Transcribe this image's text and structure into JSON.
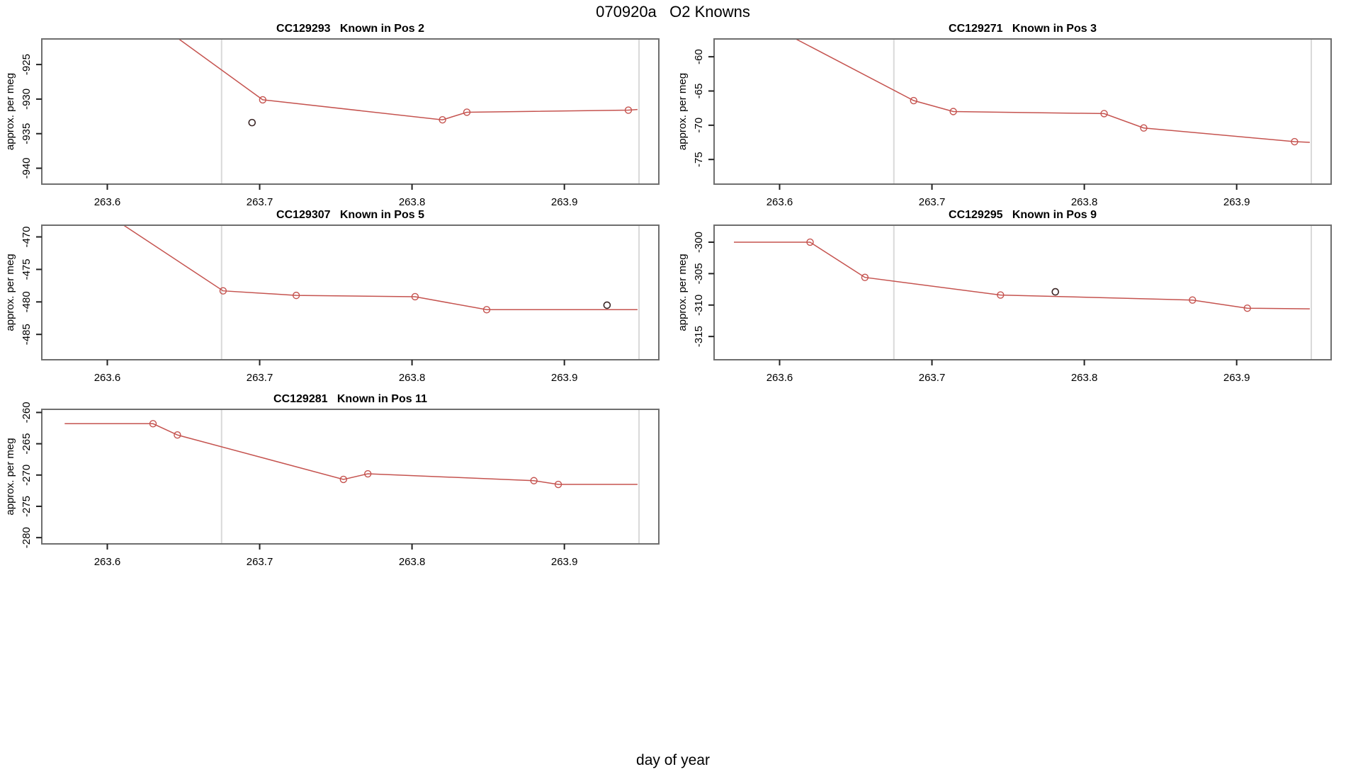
{
  "main_title": "070920a   O2 Knowns",
  "x_axis_label": "day of year",
  "colors": {
    "series": "#c5534f",
    "outlier": "#3a2626",
    "guide": "#d9d9d9",
    "frame": "#6e6e6e",
    "tick": "#222222",
    "text": "#000000"
  },
  "chart_data": [
    {
      "type": "line",
      "title": "CC129293   Known in Pos 2",
      "ylabel": "approx. per meg",
      "xlim": [
        263.557,
        263.962
      ],
      "ylim": [
        -942.3,
        -921.3
      ],
      "xticks": [
        263.6,
        263.7,
        263.8,
        263.9
      ],
      "yticks": [
        -925,
        -930,
        -935,
        -940
      ],
      "guides_x": [
        263.675,
        263.949
      ],
      "line": [
        [
          263.62,
          -917.0
        ],
        [
          263.702,
          -930.1
        ],
        [
          263.82,
          -933.0
        ],
        [
          263.836,
          -931.9
        ],
        [
          263.942,
          -931.6
        ],
        [
          263.948,
          -931.5
        ]
      ],
      "markers": [
        [
          263.702,
          -930.1
        ],
        [
          263.82,
          -933.0
        ],
        [
          263.836,
          -931.9
        ],
        [
          263.942,
          -931.6
        ]
      ],
      "outliers": [
        [
          263.695,
          -933.4
        ]
      ]
    },
    {
      "type": "line",
      "title": "CC129271   Known in Pos 3",
      "ylabel": "approx. per meg",
      "xlim": [
        263.557,
        263.962
      ],
      "ylim": [
        -78.6,
        -57.4
      ],
      "xticks": [
        263.6,
        263.7,
        263.8,
        263.9
      ],
      "yticks": [
        -60,
        -65,
        -70,
        -75
      ],
      "guides_x": [
        263.675,
        263.949
      ],
      "line": [
        [
          263.59,
          -55.0
        ],
        [
          263.688,
          -66.4
        ],
        [
          263.714,
          -68.0
        ],
        [
          263.813,
          -68.3
        ],
        [
          263.839,
          -70.4
        ],
        [
          263.938,
          -72.4
        ],
        [
          263.948,
          -72.5
        ]
      ],
      "markers": [
        [
          263.688,
          -66.4
        ],
        [
          263.714,
          -68.0
        ],
        [
          263.813,
          -68.3
        ],
        [
          263.839,
          -70.4
        ],
        [
          263.938,
          -72.4
        ]
      ],
      "outliers": []
    },
    {
      "type": "line",
      "title": "CC129307   Known in Pos 5",
      "ylabel": "approx. per meg",
      "xlim": [
        263.557,
        263.962
      ],
      "ylim": [
        -488.9,
        -468.2
      ],
      "xticks": [
        263.6,
        263.7,
        263.8,
        263.9
      ],
      "yticks": [
        -470,
        -475,
        -480,
        -485
      ],
      "guides_x": [
        263.675,
        263.949
      ],
      "line": [
        [
          263.59,
          -465.0
        ],
        [
          263.676,
          -478.3
        ],
        [
          263.724,
          -479.0
        ],
        [
          263.802,
          -479.2
        ],
        [
          263.849,
          -481.2
        ],
        [
          263.948,
          -481.2
        ]
      ],
      "markers": [
        [
          263.676,
          -478.3
        ],
        [
          263.724,
          -479.0
        ],
        [
          263.802,
          -479.2
        ],
        [
          263.849,
          -481.2
        ]
      ],
      "outliers": [
        [
          263.928,
          -480.5
        ]
      ]
    },
    {
      "type": "line",
      "title": "CC129295   Known in Pos 9",
      "ylabel": "approx. per meg",
      "xlim": [
        263.557,
        263.962
      ],
      "ylim": [
        -318.7,
        -297.3
      ],
      "xticks": [
        263.6,
        263.7,
        263.8,
        263.9
      ],
      "yticks": [
        -300,
        -305,
        -310,
        -315
      ],
      "guides_x": [
        263.675,
        263.949
      ],
      "line": [
        [
          263.57,
          -300.0
        ],
        [
          263.62,
          -300.0
        ],
        [
          263.656,
          -305.6
        ],
        [
          263.745,
          -308.4
        ],
        [
          263.871,
          -309.2
        ],
        [
          263.907,
          -310.5
        ],
        [
          263.948,
          -310.6
        ]
      ],
      "markers": [
        [
          263.62,
          -300.0
        ],
        [
          263.656,
          -305.6
        ],
        [
          263.745,
          -308.4
        ],
        [
          263.871,
          -309.2
        ],
        [
          263.907,
          -310.5
        ]
      ],
      "outliers": [
        [
          263.781,
          -307.9
        ]
      ]
    },
    {
      "type": "line",
      "title": "CC129281   Known in Pos 11",
      "ylabel": "approx. per meg",
      "xlim": [
        263.557,
        263.962
      ],
      "ylim": [
        -281.0,
        -259.5
      ],
      "xticks": [
        263.6,
        263.7,
        263.8,
        263.9
      ],
      "yticks": [
        -260,
        -265,
        -270,
        -275,
        -280
      ],
      "guides_x": [
        263.675,
        263.949
      ],
      "line": [
        [
          263.572,
          -261.8
        ],
        [
          263.63,
          -261.8
        ],
        [
          263.646,
          -263.6
        ],
        [
          263.755,
          -270.7
        ],
        [
          263.771,
          -269.8
        ],
        [
          263.88,
          -270.9
        ],
        [
          263.896,
          -271.5
        ],
        [
          263.948,
          -271.5
        ]
      ],
      "markers": [
        [
          263.63,
          -261.8
        ],
        [
          263.646,
          -263.6
        ],
        [
          263.755,
          -270.7
        ],
        [
          263.771,
          -269.8
        ],
        [
          263.88,
          -270.9
        ],
        [
          263.896,
          -271.5
        ]
      ],
      "outliers": []
    }
  ]
}
